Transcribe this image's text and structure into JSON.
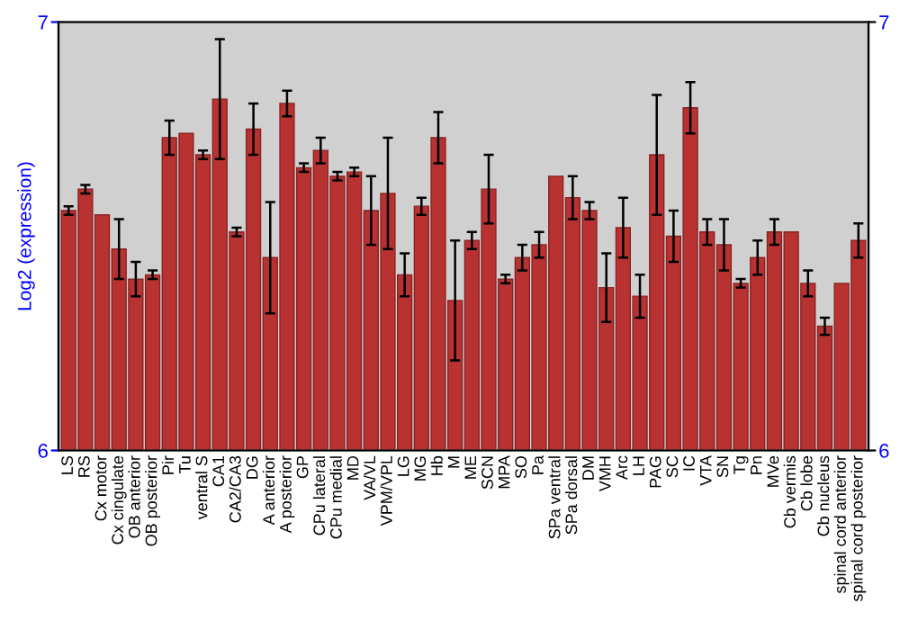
{
  "chart_data": {
    "type": "bar",
    "ylabel": "Log2 (expression)",
    "categories": [
      "LS",
      "RS",
      "Cx motor",
      "Cx cingulate",
      "OB anterior",
      "OB posterior",
      "Pir",
      "Tu",
      "ventral S",
      "CA1",
      "CA2/CA3",
      "DG",
      "A anterior",
      "A posterior",
      "GP",
      "CPu lateral",
      "CPu medial",
      "MD",
      "VA/VL",
      "VPM/VPL",
      "LG",
      "MG",
      "Hb",
      "M",
      "ME",
      "SCN",
      "MPA",
      "SO",
      "Pa",
      "SPa ventral",
      "SPa dorsal",
      "DM",
      "VMH",
      "Arc",
      "LH",
      "PAG",
      "SC",
      "IC",
      "VTA",
      "SN",
      "Tg",
      "Pn",
      "MVe",
      "Cb vermis",
      "Cb lobe",
      "Cb nucleus",
      "spinal cord anterior",
      "spinal cord posterior"
    ],
    "values": [
      6.56,
      6.61,
      6.55,
      6.47,
      6.4,
      6.41,
      6.73,
      6.74,
      6.69,
      6.82,
      6.51,
      6.75,
      6.45,
      6.81,
      6.66,
      6.7,
      6.64,
      6.65,
      6.56,
      6.6,
      6.41,
      6.57,
      6.73,
      6.35,
      6.49,
      6.61,
      6.4,
      6.45,
      6.48,
      6.64,
      6.59,
      6.56,
      6.38,
      6.52,
      6.36,
      6.69,
      6.5,
      6.8,
      6.51,
      6.48,
      6.39,
      6.45,
      6.51,
      6.51,
      6.39,
      6.29,
      6.39,
      6.49
    ],
    "errors": [
      0.01,
      0.01,
      null,
      0.07,
      0.04,
      0.01,
      0.04,
      null,
      0.01,
      0.14,
      0.01,
      0.06,
      0.13,
      0.03,
      0.01,
      0.03,
      0.01,
      0.01,
      0.08,
      0.13,
      0.05,
      0.02,
      0.06,
      0.14,
      0.02,
      0.08,
      0.01,
      0.03,
      0.03,
      null,
      0.05,
      0.02,
      0.08,
      0.07,
      0.05,
      0.14,
      0.06,
      0.06,
      0.03,
      0.06,
      0.01,
      0.04,
      0.03,
      null,
      0.03,
      0.02,
      null,
      0.04
    ],
    "color": "#b83232",
    "ylim": [
      6,
      7
    ],
    "yticks": [
      6,
      7
    ],
    "y2lim": [
      6,
      7
    ],
    "y2ticks": [
      6,
      7
    ],
    "grid": false,
    "legend": false
  }
}
